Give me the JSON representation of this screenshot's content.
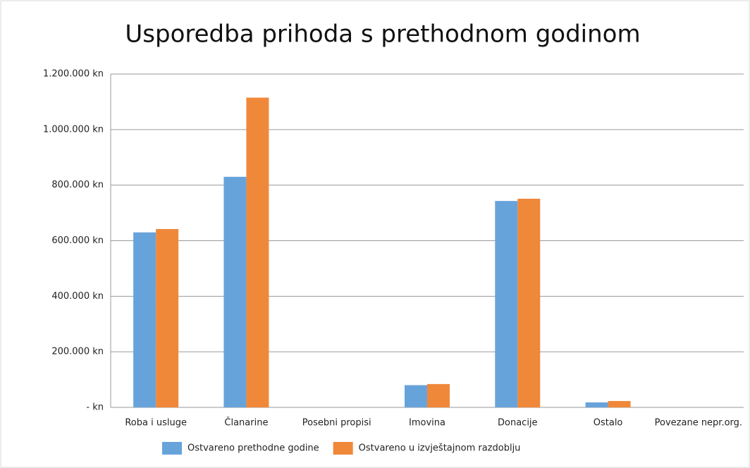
{
  "chart_data": {
    "type": "bar",
    "title": "Usporedba prihoda s prethodnom godinom",
    "categories": [
      "Roba i usluge",
      "Članarine",
      "Posebni propisi",
      "Imovina",
      "Donacije",
      "Ostalo",
      "Povezane nepr.org."
    ],
    "series": [
      {
        "name": "Ostvareno prethodne godine",
        "color": "#67a3db",
        "values": [
          630000,
          830000,
          0,
          80000,
          743000,
          18000,
          0
        ]
      },
      {
        "name": "Ostvareno u izvještajnom razdoblju",
        "color": "#f0883a",
        "values": [
          642000,
          1115000,
          0,
          84000,
          751000,
          23000,
          0
        ]
      }
    ],
    "ylim": [
      0,
      1200000
    ],
    "yticks": [
      {
        "value": 0,
        "label": "- kn"
      },
      {
        "value": 200000,
        "label": "200.000 kn"
      },
      {
        "value": 400000,
        "label": "400.000 kn"
      },
      {
        "value": 600000,
        "label": "600.000 kn"
      },
      {
        "value": 800000,
        "label": "800.000 kn"
      },
      {
        "value": 1000000,
        "label": "1.000.000 kn"
      },
      {
        "value": 1200000,
        "label": "1.200.000 kn"
      }
    ],
    "grid": true,
    "legend": "bottom"
  }
}
